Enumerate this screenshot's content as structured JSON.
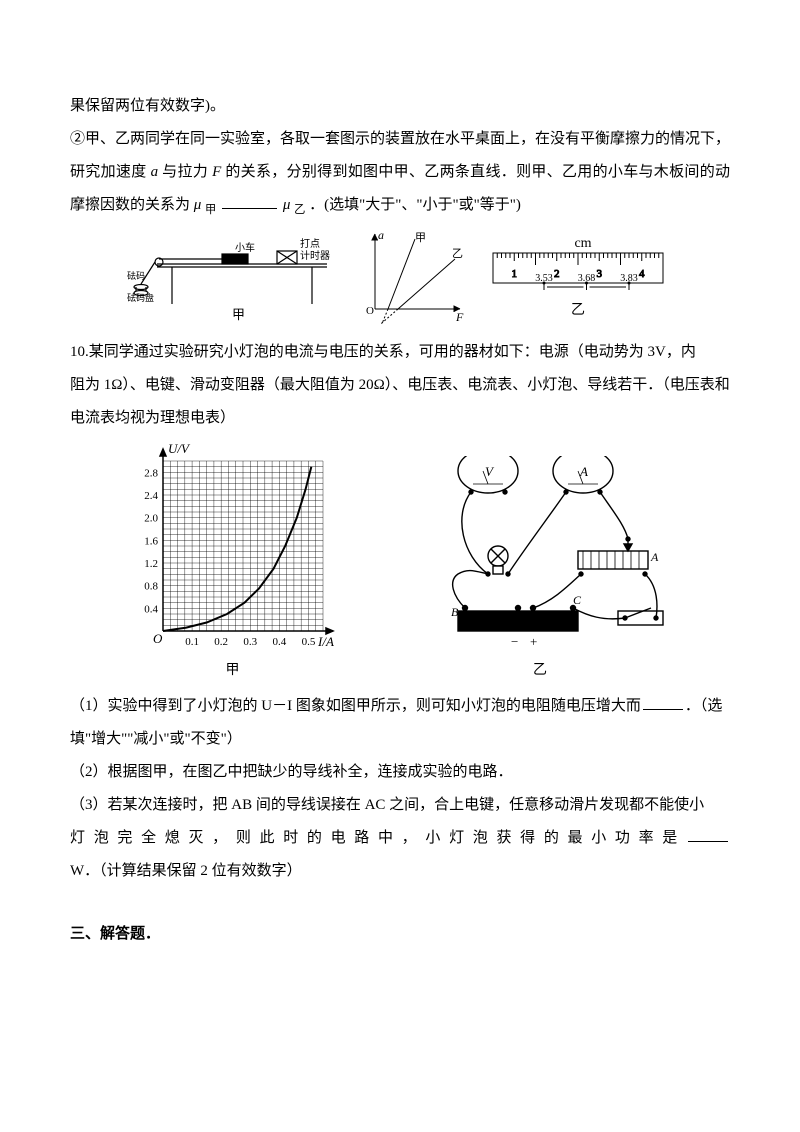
{
  "p9": {
    "line1": "果保留两位有效数字)。",
    "line2a": "②甲、乙两同学在同一实验室，各取一套图示的装置放在水平桌面上，在没有平衡摩擦力的情况下，",
    "line2b": "研究加速度",
    "line2c": "与拉力",
    "line2d": "的关系，分别得到如图中甲、乙两条直线．则甲、乙用的小车与木板间的动",
    "line2e": "摩擦因数的关系为",
    "line2f": "．(选填\"大于\"、\"小于\"或\"等于\")",
    "var_a": "a",
    "var_F": "F",
    "mu": "μ",
    "sub1": "甲",
    "sub2": "乙"
  },
  "fig9": {
    "timer_label": "打点\n计时器",
    "car_label": "小车",
    "pan_label1": "砝码",
    "pan_label2": "砝码盘",
    "cap1": "甲",
    "axis_a": "a",
    "axis_F": "F",
    "line1": "甲",
    "line2": "乙",
    "cap_axis": "",
    "ruler_unit": "cm",
    "ruler_major": [
      "1",
      "2",
      "3",
      "4"
    ],
    "ruler_read": [
      "3.53",
      "3.68",
      "3.83"
    ],
    "cap2": "乙",
    "colors": {
      "line": "#000",
      "bg": "#fff"
    }
  },
  "q10": {
    "stem1": "10.某同学通过实验研究小灯泡的电流与电压的关系，可用的器材如下：电源（电动势为 3V，内",
    "stem2": "阻为 1Ω）、电键、滑动变阻器（最大阻值为 20Ω）、电压表、电流表、小灯泡、导线若干．（电压表和",
    "stem3": "电流表均视为理想电表）",
    "sub1a": "（1）实验中得到了小灯泡的 U－I 图象如图甲所示，则可知小灯泡的电阻随电压增大而",
    "sub1b": "．（选",
    "sub1c": "填\"增大\"\"减小\"或\"不变\"）",
    "sub2": "（2）根据图甲，在图乙中把缺少的导线补全，连接成实验的电路．",
    "sub3a": "（3）若某次连接时，把 AB 间的导线误接在 AC 之间，合上电键，任意移动滑片发现都不能使小",
    "sub3b": "灯泡完全熄灭，则此时的电路中，小灯泡获得的最小功率是",
    "sub3c": "W．（计算结果保留 2 位有效数字）"
  },
  "fig10": {
    "chart": {
      "type": "line",
      "ylabel": "U/V",
      "xlabel": "I/A",
      "xlim": [
        0,
        0.55
      ],
      "ylim": [
        0,
        3.0
      ],
      "xticks": [
        "0.1",
        "0.2",
        "0.3",
        "0.4",
        "0.5"
      ],
      "yticks": [
        "0.4",
        "0.8",
        "1.2",
        "1.6",
        "2.0",
        "2.4",
        "2.8"
      ],
      "grid_color": "#000",
      "bg_color": "#fff",
      "curve_points": [
        [
          0,
          0
        ],
        [
          0.08,
          0.06
        ],
        [
          0.15,
          0.15
        ],
        [
          0.22,
          0.3
        ],
        [
          0.28,
          0.5
        ],
        [
          0.33,
          0.75
        ],
        [
          0.38,
          1.1
        ],
        [
          0.42,
          1.5
        ],
        [
          0.46,
          2.0
        ],
        [
          0.49,
          2.5
        ],
        [
          0.51,
          2.9
        ]
      ],
      "line_width": 2,
      "cap": "甲"
    },
    "circuit": {
      "meters": [
        "V",
        "A"
      ],
      "labels_bottom": [
        "B",
        "−",
        "+",
        "C"
      ],
      "label_A": "A",
      "cap": "乙"
    }
  },
  "section3": "三、解答题．"
}
